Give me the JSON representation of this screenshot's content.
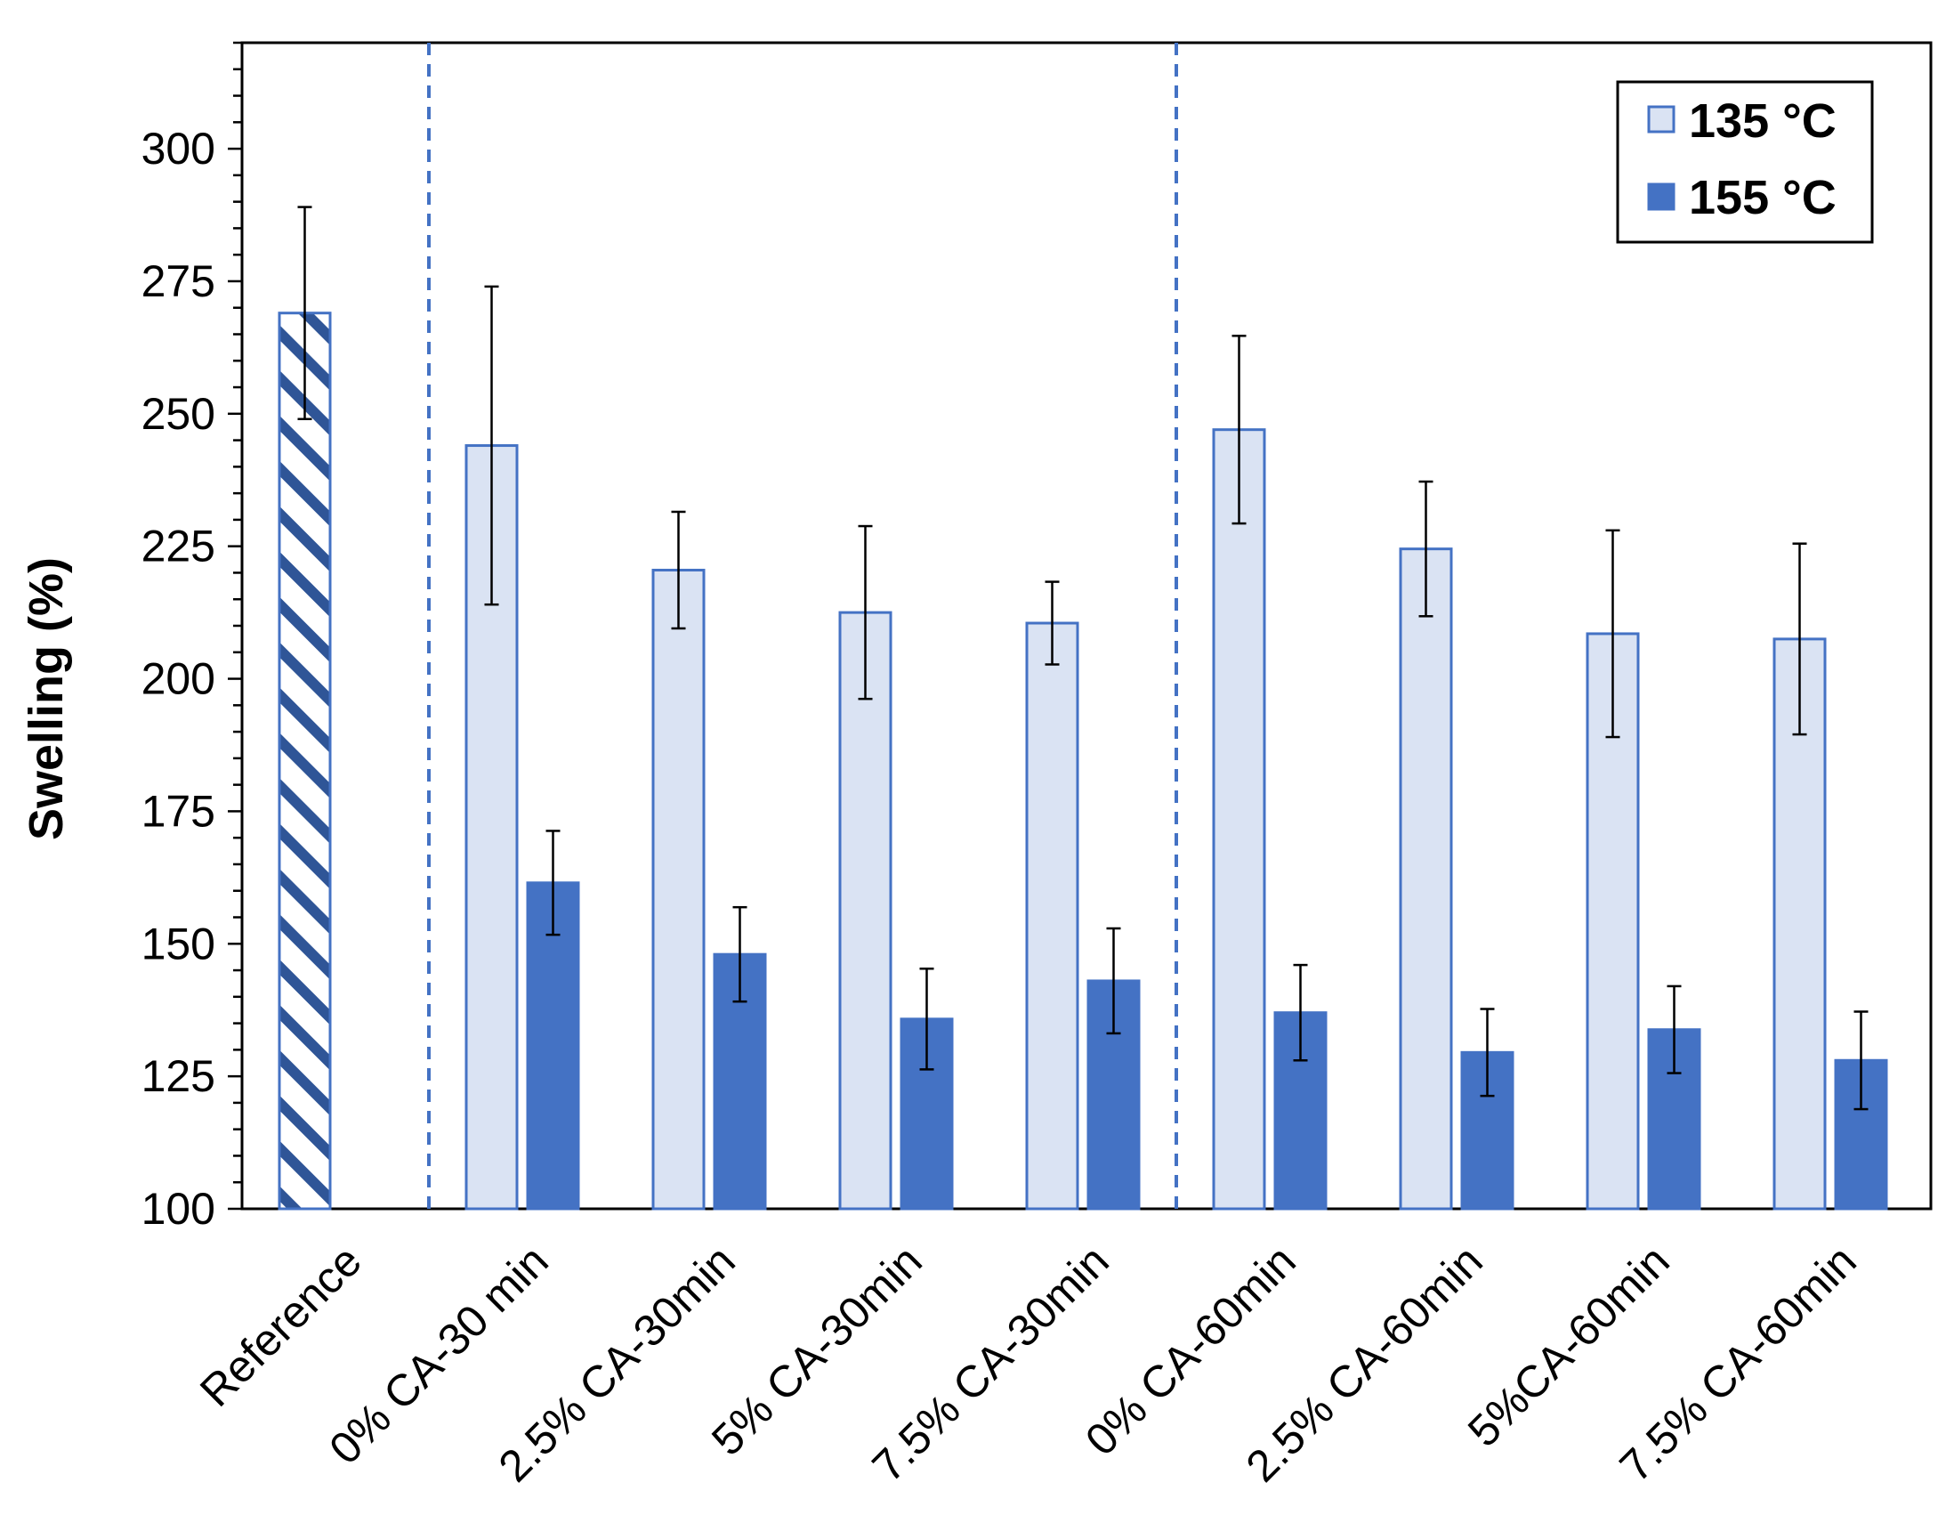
{
  "chart_data": {
    "type": "bar",
    "title": "",
    "xlabel": "",
    "ylabel": "Swelling (%)",
    "ylim": [
      100,
      320
    ],
    "yticks": [
      100,
      125,
      150,
      175,
      200,
      225,
      250,
      275,
      300
    ],
    "categories": [
      "Reference",
      "0% CA-30 min",
      "2.5% CA-30min",
      "5% CA-30min",
      "7.5% CA-30min",
      "0% CA-60min",
      "2.5% CA-60min",
      "5%CA-60min",
      "7.5% CA-60min"
    ],
    "reference": {
      "value": 269,
      "error": 20,
      "pattern": "diagonal-hatch"
    },
    "series": [
      {
        "name": "135 °C",
        "color": "#dae3f3",
        "edge": "#4472c4",
        "values": [
          null,
          244,
          220.5,
          212.5,
          210.5,
          247,
          224.5,
          208.5,
          207.5
        ],
        "errors": [
          null,
          30,
          11,
          16.3,
          7.8,
          17.7,
          12.7,
          19.5,
          18
        ]
      },
      {
        "name": "155 °C",
        "color": "#4472c4",
        "edge": "#4472c4",
        "values": [
          null,
          161.5,
          148,
          135.8,
          143,
          137,
          129.5,
          133.8,
          128
        ],
        "errors": [
          null,
          9.8,
          8.9,
          9.5,
          9.9,
          9,
          8.2,
          8.2,
          9.2
        ]
      }
    ],
    "separators_after_categories": [
      0,
      4
    ],
    "legend_position": "top-right",
    "grid": false
  }
}
